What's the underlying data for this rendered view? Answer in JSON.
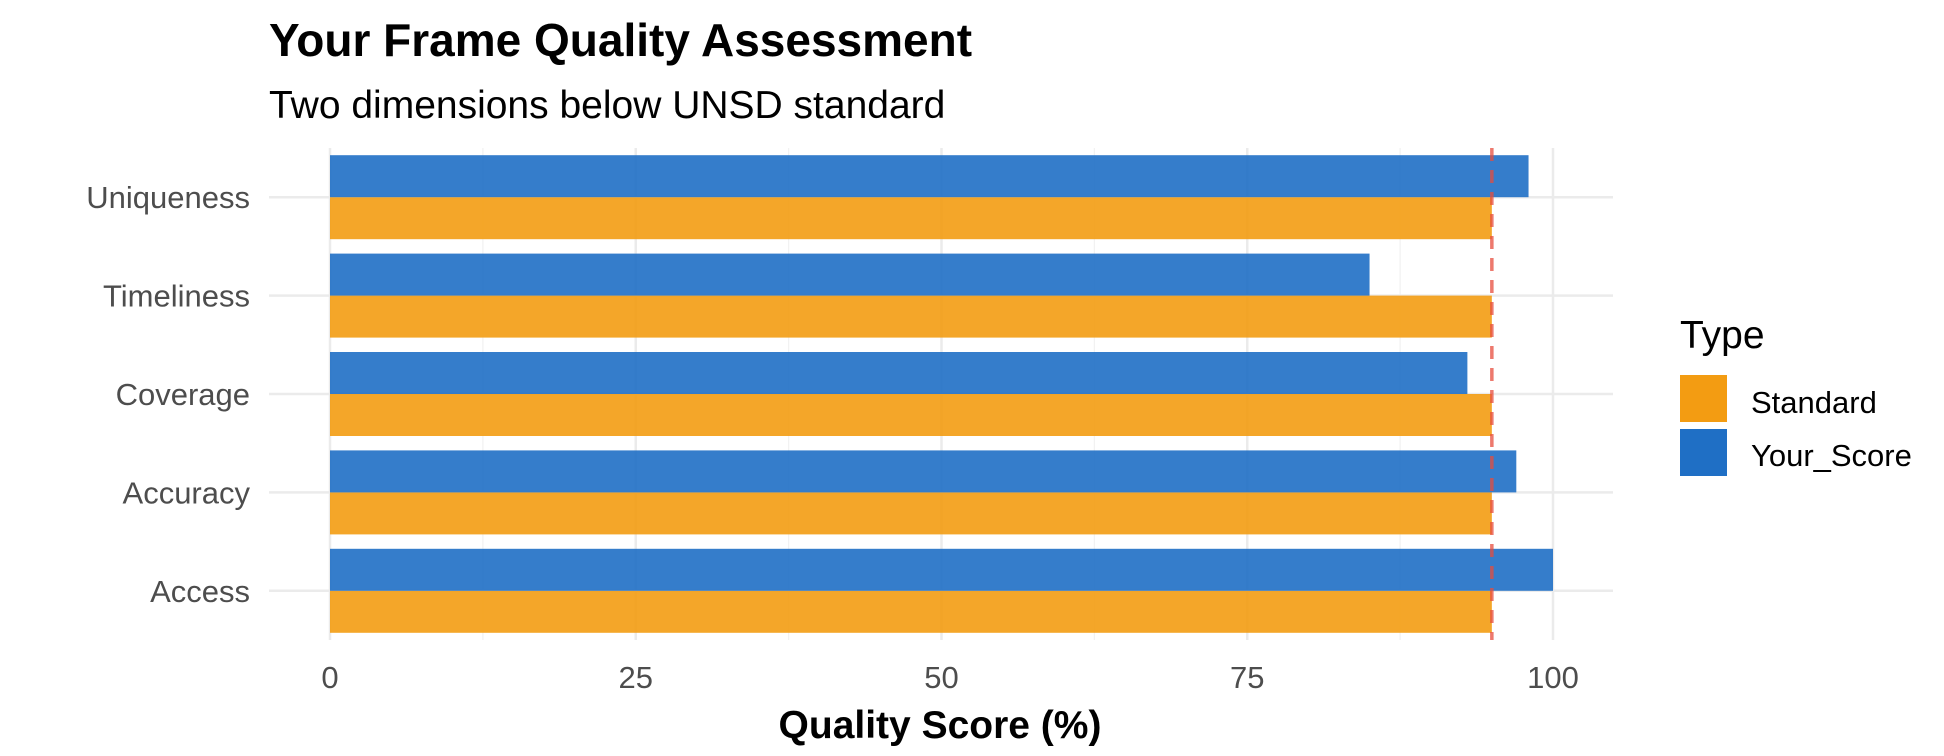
{
  "chart_data": {
    "type": "bar",
    "orientation": "horizontal",
    "title": "Your Frame Quality Assessment",
    "subtitle": "Two dimensions below UNSD standard",
    "xlabel": "Quality Score (%)",
    "ylabel": "",
    "xlim": [
      0,
      105
    ],
    "x_ticks": [
      0,
      25,
      50,
      75,
      100
    ],
    "x_tick_labels": [
      "0",
      "25",
      "50",
      "75",
      "100"
    ],
    "categories": [
      "Access",
      "Accuracy",
      "Coverage",
      "Timeliness",
      "Uniqueness"
    ],
    "series": [
      {
        "name": "Standard",
        "color": "#F39C12",
        "values": [
          95,
          95,
          95,
          95,
          95
        ]
      },
      {
        "name": "Your_Score",
        "color": "#1F6FC5",
        "values": [
          100,
          97,
          93,
          85,
          98
        ]
      }
    ],
    "reference_line": {
      "value": 95,
      "color": "#E74C3C",
      "style": "dashed"
    },
    "legend": {
      "title": "Type",
      "position": "right",
      "entries": [
        "Standard",
        "Your_Score"
      ]
    },
    "grid": true
  }
}
